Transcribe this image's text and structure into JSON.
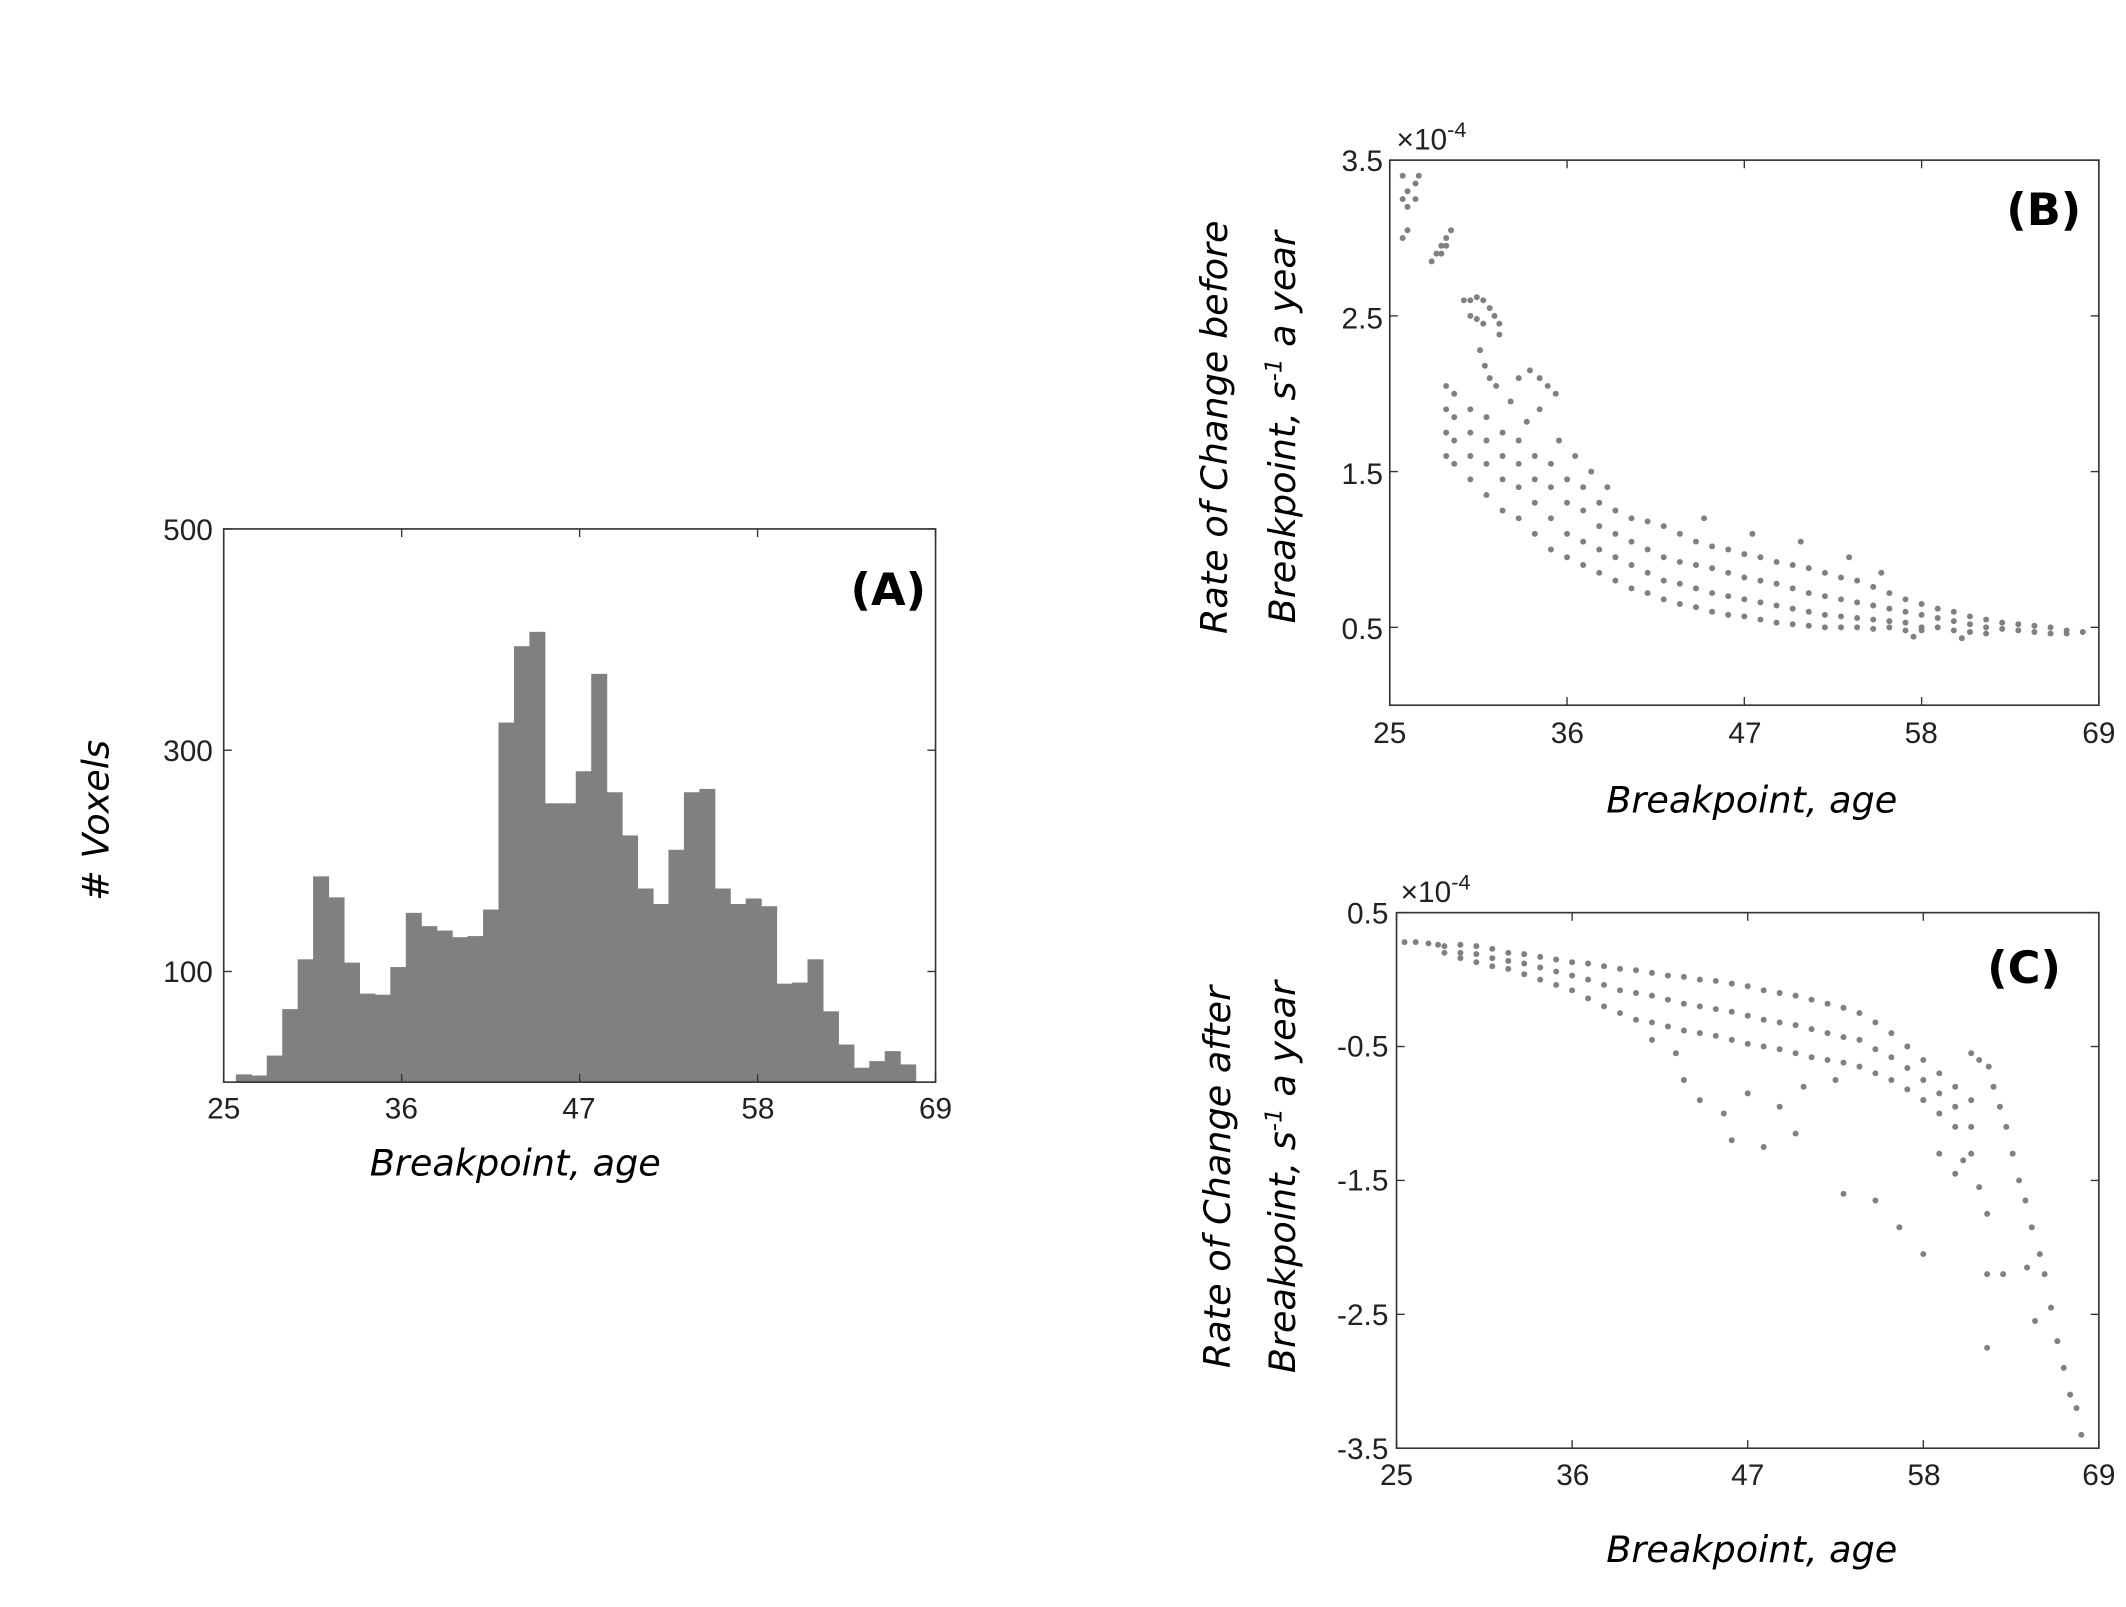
{
  "chart_data": [
    {
      "panel": "(A)",
      "type": "bar",
      "xlabel": "Breakpoint, age",
      "ylabel": "# Voxels",
      "xlim": [
        25,
        69
      ],
      "ylim": [
        0,
        500
      ],
      "xticks": [
        "25",
        "36",
        "47",
        "58",
        "69"
      ],
      "yticks": [
        "100",
        "300",
        "500"
      ],
      "bin_start": 25.75,
      "bin_width": 0.955,
      "values": [
        7,
        6,
        24,
        66,
        111,
        186,
        167,
        108,
        80,
        79,
        104,
        153,
        141,
        137,
        131,
        132,
        156,
        325,
        394,
        407,
        252,
        252,
        281,
        369,
        262,
        223,
        175,
        161,
        210,
        262,
        265,
        175,
        161,
        166,
        159,
        89,
        90,
        111,
        64,
        34,
        13,
        19,
        28,
        16
      ],
      "color": "#808080"
    },
    {
      "panel": "(B)",
      "type": "scatter",
      "xlabel": "Breakpoint, age",
      "ylabel_line1": "Rate of Change before",
      "ylabel_line2_pre": "Breakpoint, s",
      "ylabel_sup": "-1",
      "ylabel_line2_post": " a year",
      "multiplier_base": "×10",
      "multiplier_exp": "-4",
      "xlim": [
        25,
        69
      ],
      "ylim": [
        0,
        3.5
      ],
      "xticks": [
        "25",
        "36",
        "47",
        "58",
        "69"
      ],
      "yticks": [
        "0.5",
        "1.5",
        "2.5",
        "3.5"
      ],
      "color": "#808080",
      "groups": [
        {
          "x": 25.8,
          "y": [
            3.0,
            3.25,
            3.4
          ]
        },
        {
          "x": 26.1,
          "y": [
            3.05,
            3.3,
            3.2
          ]
        },
        {
          "x": 26.6,
          "y": [
            3.35,
            3.25
          ]
        },
        {
          "x": 26.8,
          "y": [
            3.4
          ]
        },
        {
          "x": 27.6,
          "y": [
            2.85
          ]
        },
        {
          "x": 27.9,
          "y": [
            2.9
          ]
        },
        {
          "x": 28.2,
          "y": [
            2.95,
            2.9
          ]
        },
        {
          "x": 28.5,
          "y": [
            3.0,
            2.95
          ]
        },
        {
          "x": 28.8,
          "y": [
            3.05
          ]
        },
        {
          "x": 29.6,
          "y": [
            2.6
          ]
        },
        {
          "x": 30.0,
          "y": [
            2.6,
            2.5
          ]
        },
        {
          "x": 30.4,
          "y": [
            2.62,
            2.48
          ]
        },
        {
          "x": 30.8,
          "y": [
            2.6,
            2.45
          ]
        },
        {
          "x": 31.2,
          "y": [
            2.55
          ]
        },
        {
          "x": 31.5,
          "y": [
            2.5
          ]
        },
        {
          "x": 31.8,
          "y": [
            2.45,
            2.38
          ]
        },
        {
          "x": 30.6,
          "y": [
            2.28
          ]
        },
        {
          "x": 30.9,
          "y": [
            2.18
          ]
        },
        {
          "x": 31.2,
          "y": [
            2.1
          ]
        },
        {
          "x": 31.6,
          "y": [
            2.05
          ]
        },
        {
          "x": 32.5,
          "y": [
            1.95
          ]
        },
        {
          "x": 33.5,
          "y": [
            1.82
          ]
        },
        {
          "x": 33.0,
          "y": [
            2.1
          ]
        },
        {
          "x": 33.7,
          "y": [
            2.15
          ]
        },
        {
          "x": 34.3,
          "y": [
            2.1,
            1.9
          ]
        },
        {
          "x": 34.8,
          "y": [
            2.05
          ]
        },
        {
          "x": 35.3,
          "y": [
            2.0
          ]
        },
        {
          "x": 28.5,
          "y": [
            2.05,
            1.9,
            1.75,
            1.6
          ]
        },
        {
          "x": 29,
          "y": [
            2.0,
            1.85,
            1.7,
            1.55
          ]
        },
        {
          "x": 30,
          "y": [
            1.9,
            1.75,
            1.6,
            1.45
          ]
        },
        {
          "x": 31,
          "y": [
            1.85,
            1.7,
            1.55,
            1.35
          ]
        },
        {
          "x": 32,
          "y": [
            1.75,
            1.6,
            1.45,
            1.25
          ]
        },
        {
          "x": 33,
          "y": [
            1.7,
            1.55,
            1.4,
            1.2
          ]
        },
        {
          "x": 34,
          "y": [
            1.6,
            1.45,
            1.3,
            1.1
          ]
        },
        {
          "x": 35,
          "y": [
            1.55,
            1.4,
            1.2,
            1.0
          ]
        },
        {
          "x": 36,
          "y": [
            1.45,
            1.3,
            1.1,
            0.95
          ]
        },
        {
          "x": 37,
          "y": [
            1.4,
            1.25,
            1.05,
            0.9
          ]
        },
        {
          "x": 38,
          "y": [
            1.3,
            1.15,
            1.0,
            0.85
          ]
        },
        {
          "x": 39,
          "y": [
            1.25,
            1.1,
            0.95,
            0.8
          ]
        },
        {
          "x": 40,
          "y": [
            1.2,
            1.05,
            0.9,
            0.75
          ]
        },
        {
          "x": 41,
          "y": [
            1.18,
            1.0,
            0.85,
            0.72
          ]
        },
        {
          "x": 42,
          "y": [
            1.15,
            0.95,
            0.8,
            0.68
          ]
        },
        {
          "x": 43,
          "y": [
            1.1,
            0.92,
            0.78,
            0.65
          ]
        },
        {
          "x": 44,
          "y": [
            1.05,
            0.9,
            0.75,
            0.63
          ]
        },
        {
          "x": 45,
          "y": [
            1.02,
            0.88,
            0.72,
            0.6
          ]
        },
        {
          "x": 46,
          "y": [
            1.0,
            0.85,
            0.7,
            0.58
          ]
        },
        {
          "x": 47,
          "y": [
            0.97,
            0.82,
            0.68,
            0.57
          ]
        },
        {
          "x": 48,
          "y": [
            0.95,
            0.8,
            0.66,
            0.55
          ]
        },
        {
          "x": 49,
          "y": [
            0.92,
            0.78,
            0.64,
            0.53
          ]
        },
        {
          "x": 50,
          "y": [
            0.9,
            0.75,
            0.62,
            0.52
          ]
        },
        {
          "x": 51,
          "y": [
            0.88,
            0.72,
            0.6,
            0.51
          ]
        },
        {
          "x": 52,
          "y": [
            0.85,
            0.7,
            0.58,
            0.5
          ]
        },
        {
          "x": 53,
          "y": [
            0.82,
            0.68,
            0.57,
            0.5
          ]
        },
        {
          "x": 54,
          "y": [
            0.8,
            0.66,
            0.56,
            0.5
          ]
        },
        {
          "x": 55,
          "y": [
            0.76,
            0.64,
            0.55,
            0.49
          ]
        },
        {
          "x": 56,
          "y": [
            0.72,
            0.62,
            0.54,
            0.5
          ]
        },
        {
          "x": 57,
          "y": [
            0.68,
            0.6,
            0.53,
            0.48
          ]
        },
        {
          "x": 58,
          "y": [
            0.65,
            0.58,
            0.5,
            0.48
          ]
        },
        {
          "x": 59,
          "y": [
            0.62,
            0.56,
            0.5
          ]
        },
        {
          "x": 60,
          "y": [
            0.6,
            0.54,
            0.48
          ]
        },
        {
          "x": 61,
          "y": [
            0.57,
            0.52,
            0.47
          ]
        },
        {
          "x": 62,
          "y": [
            0.55,
            0.5,
            0.46
          ]
        },
        {
          "x": 63,
          "y": [
            0.53,
            0.49
          ]
        },
        {
          "x": 64,
          "y": [
            0.52,
            0.48
          ]
        },
        {
          "x": 65,
          "y": [
            0.51,
            0.47
          ]
        },
        {
          "x": 66,
          "y": [
            0.5,
            0.46
          ]
        },
        {
          "x": 67,
          "y": [
            0.48,
            0.46
          ]
        },
        {
          "x": 68,
          "y": [
            0.47
          ]
        },
        {
          "x": 35.5,
          "y": [
            1.7
          ]
        },
        {
          "x": 36.5,
          "y": [
            1.6
          ]
        },
        {
          "x": 37.5,
          "y": [
            1.5
          ]
        },
        {
          "x": 38.5,
          "y": [
            1.4
          ]
        },
        {
          "x": 44.5,
          "y": [
            1.2
          ]
        },
        {
          "x": 47.5,
          "y": [
            1.1
          ]
        },
        {
          "x": 50.5,
          "y": [
            1.05
          ]
        },
        {
          "x": 53.5,
          "y": [
            0.95
          ]
        },
        {
          "x": 55.5,
          "y": [
            0.85
          ]
        },
        {
          "x": 60.5,
          "y": [
            0.43
          ]
        },
        {
          "x": 57.5,
          "y": [
            0.44
          ]
        }
      ]
    },
    {
      "panel": "(C)",
      "type": "scatter",
      "xlabel": "Breakpoint, age",
      "ylabel_line1": "Rate of Change after",
      "ylabel_line2_pre": "Breakpoint, s",
      "ylabel_sup": "-1",
      "ylabel_line2_post": " a year",
      "multiplier_base": "×10",
      "multiplier_exp": "-4",
      "xlim": [
        25,
        69
      ],
      "ylim": [
        -3.5,
        0.5
      ],
      "xticks": [
        "25",
        "36",
        "47",
        "58",
        "69"
      ],
      "yticks": [
        "0.5",
        "-0.5",
        "-1.5",
        "-2.5",
        "-3.5"
      ],
      "color": "#808080",
      "groups": [
        {
          "x": 25.5,
          "y": [
            0.28
          ]
        },
        {
          "x": 26.2,
          "y": [
            0.28
          ]
        },
        {
          "x": 27,
          "y": [
            0.27
          ]
        },
        {
          "x": 27.6,
          "y": [
            0.26
          ]
        },
        {
          "x": 28,
          "y": [
            0.25,
            0.2
          ]
        },
        {
          "x": 29,
          "y": [
            0.26,
            0.2,
            0.16
          ]
        },
        {
          "x": 30,
          "y": [
            0.25,
            0.19,
            0.13
          ]
        },
        {
          "x": 31,
          "y": [
            0.23,
            0.16,
            0.1
          ]
        },
        {
          "x": 32,
          "y": [
            0.2,
            0.14,
            0.08
          ]
        },
        {
          "x": 33,
          "y": [
            0.19,
            0.12,
            0.04
          ]
        },
        {
          "x": 34,
          "y": [
            0.17,
            0.09,
            0.0
          ]
        },
        {
          "x": 35,
          "y": [
            0.15,
            0.06,
            -0.04
          ]
        },
        {
          "x": 36,
          "y": [
            0.13,
            0.03,
            -0.08
          ]
        },
        {
          "x": 37,
          "y": [
            0.12,
            0.0,
            -0.14
          ]
        },
        {
          "x": 38,
          "y": [
            0.1,
            -0.04,
            -0.2
          ]
        },
        {
          "x": 39,
          "y": [
            0.08,
            -0.08,
            -0.25
          ]
        },
        {
          "x": 40,
          "y": [
            0.07,
            -0.1,
            -0.3
          ]
        },
        {
          "x": 41,
          "y": [
            0.05,
            -0.12,
            -0.32
          ]
        },
        {
          "x": 42,
          "y": [
            0.03,
            -0.15,
            -0.35
          ]
        },
        {
          "x": 43,
          "y": [
            0.02,
            -0.18,
            -0.38
          ]
        },
        {
          "x": 44,
          "y": [
            0.0,
            -0.2,
            -0.4
          ]
        },
        {
          "x": 45,
          "y": [
            -0.01,
            -0.22,
            -0.42
          ]
        },
        {
          "x": 46,
          "y": [
            -0.03,
            -0.24,
            -0.45
          ]
        },
        {
          "x": 47,
          "y": [
            -0.05,
            -0.27,
            -0.48
          ]
        },
        {
          "x": 48,
          "y": [
            -0.08,
            -0.3,
            -0.5
          ]
        },
        {
          "x": 49,
          "y": [
            -0.1,
            -0.32,
            -0.52
          ]
        },
        {
          "x": 50,
          "y": [
            -0.12,
            -0.34,
            -0.55
          ]
        },
        {
          "x": 51,
          "y": [
            -0.15,
            -0.37,
            -0.58
          ]
        },
        {
          "x": 52,
          "y": [
            -0.18,
            -0.4,
            -0.6
          ]
        },
        {
          "x": 53,
          "y": [
            -0.21,
            -0.43,
            -0.62
          ]
        },
        {
          "x": 54,
          "y": [
            -0.25,
            -0.45,
            -0.65
          ]
        },
        {
          "x": 55,
          "y": [
            -0.32,
            -0.52,
            -0.7
          ]
        },
        {
          "x": 56,
          "y": [
            -0.4,
            -0.58,
            -0.75
          ]
        },
        {
          "x": 57,
          "y": [
            -0.5,
            -0.66,
            -0.82
          ]
        },
        {
          "x": 58,
          "y": [
            -0.6,
            -0.75,
            -0.9
          ]
        },
        {
          "x": 59,
          "y": [
            -0.7,
            -0.85,
            -1.0
          ]
        },
        {
          "x": 60,
          "y": [
            -0.8,
            -0.95,
            -1.1
          ]
        },
        {
          "x": 61,
          "y": [
            -0.9,
            -1.1,
            -1.3
          ]
        },
        {
          "x": 41,
          "y": [
            -0.45
          ]
        },
        {
          "x": 42.5,
          "y": [
            -0.55
          ]
        },
        {
          "x": 43,
          "y": [
            -0.75
          ]
        },
        {
          "x": 44,
          "y": [
            -0.9
          ]
        },
        {
          "x": 45.5,
          "y": [
            -1.0
          ]
        },
        {
          "x": 46,
          "y": [
            -1.2
          ]
        },
        {
          "x": 47,
          "y": [
            -0.85
          ]
        },
        {
          "x": 48,
          "y": [
            -1.25
          ]
        },
        {
          "x": 49,
          "y": [
            -0.95
          ]
        },
        {
          "x": 50,
          "y": [
            -1.15
          ]
        },
        {
          "x": 50.5,
          "y": [
            -0.8
          ]
        },
        {
          "x": 52.5,
          "y": [
            -0.75
          ]
        },
        {
          "x": 53,
          "y": [
            -1.6
          ]
        },
        {
          "x": 55,
          "y": [
            -1.65
          ]
        },
        {
          "x": 56.5,
          "y": [
            -1.85
          ]
        },
        {
          "x": 58,
          "y": [
            -2.05,
            -0.9
          ]
        },
        {
          "x": 59,
          "y": [
            -1.3
          ]
        },
        {
          "x": 60,
          "y": [
            -1.45
          ]
        },
        {
          "x": 60.5,
          "y": [
            -1.35
          ]
        },
        {
          "x": 61.5,
          "y": [
            -1.55
          ]
        },
        {
          "x": 62,
          "y": [
            -2.2,
            -2.75,
            -1.75
          ]
        },
        {
          "x": 63,
          "y": [
            -2.2
          ]
        },
        {
          "x": 64.5,
          "y": [
            -2.15
          ]
        },
        {
          "x": 65,
          "y": [
            -2.55
          ]
        },
        {
          "x": 61,
          "y": [
            -0.55
          ]
        },
        {
          "x": 61.5,
          "y": [
            -0.6
          ]
        },
        {
          "x": 62.1,
          "y": [
            -0.65
          ]
        },
        {
          "x": 62.4,
          "y": [
            -0.8
          ]
        },
        {
          "x": 62.8,
          "y": [
            -0.95
          ]
        },
        {
          "x": 63.2,
          "y": [
            -1.1
          ]
        },
        {
          "x": 63.6,
          "y": [
            -1.3
          ]
        },
        {
          "x": 64,
          "y": [
            -1.5
          ]
        },
        {
          "x": 64.4,
          "y": [
            -1.65
          ]
        },
        {
          "x": 64.8,
          "y": [
            -1.85
          ]
        },
        {
          "x": 65.3,
          "y": [
            -2.05
          ]
        },
        {
          "x": 65.6,
          "y": [
            -2.2
          ]
        },
        {
          "x": 66,
          "y": [
            -2.45
          ]
        },
        {
          "x": 66.4,
          "y": [
            -2.7
          ]
        },
        {
          "x": 66.8,
          "y": [
            -2.9
          ]
        },
        {
          "x": 67.2,
          "y": [
            -3.1
          ]
        },
        {
          "x": 67.6,
          "y": [
            -3.2
          ]
        },
        {
          "x": 67.9,
          "y": [
            -3.4
          ]
        }
      ]
    }
  ]
}
